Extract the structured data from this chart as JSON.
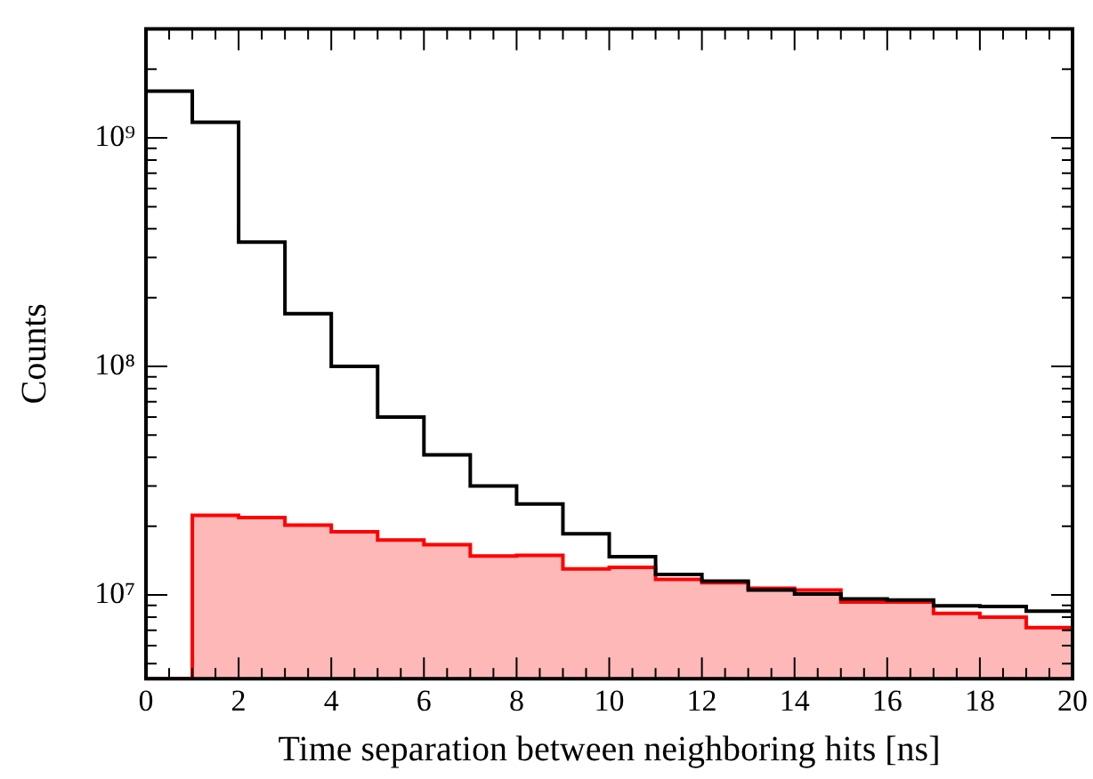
{
  "chart_data": {
    "type": "histogram",
    "xlabel": "Time separation between neighboring hits [ns]",
    "ylabel": "Counts",
    "bins": [
      0,
      1,
      2,
      3,
      4,
      5,
      6,
      7,
      8,
      9,
      10,
      11,
      12,
      13,
      14,
      15,
      16,
      17,
      18,
      19,
      20
    ],
    "series": [
      {
        "color": "#000000",
        "values": [
          1600000000.0,
          1170000000.0,
          350000000.0,
          170000000.0,
          100000000.0,
          60000000.0,
          41000000.0,
          30000000.0,
          25000000.0,
          18500000.0,
          14700000.0,
          12300000.0,
          11500000.0,
          10500000.0,
          10100000.0,
          9600000.0,
          9500000.0,
          8970000.0,
          8900000.0,
          8500000.0
        ]
      },
      {
        "color": "#ff0000",
        "values": [
          null,
          22300000.0,
          21800000.0,
          20200000.0,
          18900000.0,
          17400000.0,
          16600000.0,
          14800000.0,
          14900000.0,
          13000000.0,
          13200000.0,
          11700000.0,
          11300000.0,
          10700000.0,
          10500000.0,
          9300000.0,
          9300000.0,
          8300000.0,
          8000000.0,
          7200000.0
        ]
      }
    ],
    "log": "y",
    "xlim": [
      0,
      20
    ],
    "ylim": [
      4300000.0,
      3000000000.0
    ],
    "xticks": [
      0,
      {
        "value": 0.5,
        "label": null
      },
      {
        "value": 1,
        "label": null
      },
      {
        "value": 1.5,
        "label": null
      },
      2,
      {
        "value": 2.5,
        "label": null
      },
      {
        "value": 3,
        "label": null
      },
      {
        "value": 3.5,
        "label": null
      },
      4,
      {
        "value": 4.5,
        "label": null
      },
      {
        "value": 5,
        "label": null
      },
      {
        "value": 5.5,
        "label": null
      },
      6,
      {
        "value": 6.5,
        "label": null
      },
      {
        "value": 7,
        "label": null
      },
      {
        "value": 7.5,
        "label": null
      },
      8,
      {
        "value": 8.5,
        "label": null
      },
      {
        "value": 9,
        "label": null
      },
      {
        "value": 9.5,
        "label": null
      },
      10,
      {
        "value": 10.5,
        "label": null
      },
      {
        "value": 11,
        "label": null
      },
      {
        "value": 11.5,
        "label": null
      },
      12,
      {
        "value": 12.5,
        "label": null
      },
      {
        "value": 13,
        "label": null
      },
      {
        "value": 13.5,
        "label": null
      },
      14,
      {
        "value": 14.5,
        "label": null
      },
      {
        "value": 15,
        "label": null
      },
      {
        "value": 15.5,
        "label": null
      },
      16,
      {
        "value": 16.5,
        "label": null
      },
      {
        "value": 17,
        "label": null
      },
      {
        "value": 17.5,
        "label": null
      },
      18,
      {
        "value": 18.5,
        "label": null
      },
      {
        "value": 19,
        "label": null
      },
      {
        "value": 19.5,
        "label": null
      },
      20
    ],
    "yticks": [
      {
        "value": 5000000.0,
        "label": null
      },
      {
        "value": 6000000.0,
        "label": null
      },
      {
        "value": 7000000.0,
        "label": null
      },
      {
        "value": 8000000.0,
        "label": null
      },
      {
        "value": 9000000.0,
        "label": null
      },
      {
        "value": 10000000.0,
        "label": "10⁷"
      },
      {
        "value": 20000000.0,
        "label": null
      },
      {
        "value": 30000000.0,
        "label": null
      },
      {
        "value": 40000000.0,
        "label": null
      },
      {
        "value": 50000000.0,
        "label": null
      },
      {
        "value": 60000000.0,
        "label": null
      },
      {
        "value": 70000000.0,
        "label": null
      },
      {
        "value": 80000000.0,
        "label": null
      },
      {
        "value": 90000000.0,
        "label": null
      },
      {
        "value": 100000000.0,
        "label": "10⁸"
      },
      {
        "value": 200000000.0,
        "label": null
      },
      {
        "value": 300000000.0,
        "label": null
      },
      {
        "value": 400000000.0,
        "label": null
      },
      {
        "value": 500000000.0,
        "label": null
      },
      {
        "value": 600000000.0,
        "label": null
      },
      {
        "value": 700000000.0,
        "label": null
      },
      {
        "value": 800000000.0,
        "label": null
      },
      {
        "value": 900000000.0,
        "label": null
      },
      {
        "value": 1000000000.0,
        "label": "10⁹"
      },
      {
        "value": 2000000000.0,
        "label": null
      }
    ],
    "grid": false,
    "legend": false
  }
}
